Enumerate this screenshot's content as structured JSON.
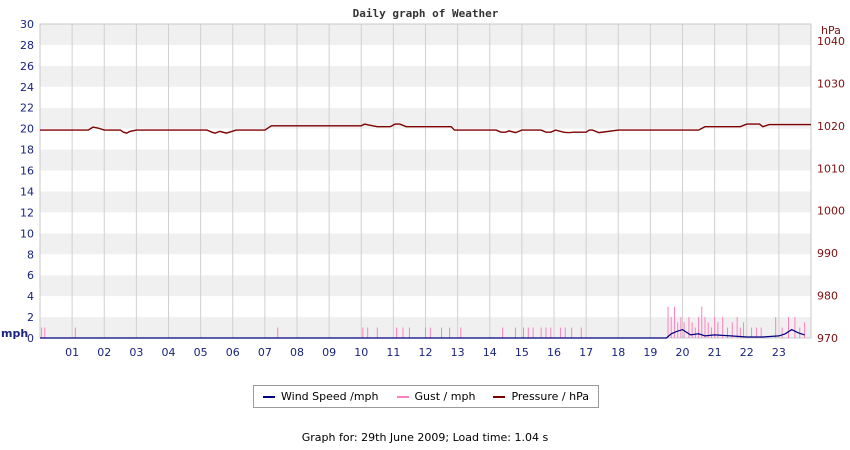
{
  "chart_data": {
    "type": "line",
    "title": "Daily graph of Weather",
    "left_axis": {
      "label": "mph",
      "ylim": [
        0,
        30
      ],
      "ticks": [
        0,
        2,
        4,
        6,
        8,
        10,
        12,
        14,
        16,
        18,
        20,
        22,
        24,
        26,
        28,
        30
      ]
    },
    "right_axis": {
      "label": "hPa",
      "ylim": [
        970,
        1044
      ],
      "ticks": [
        970,
        980,
        990,
        1000,
        1010,
        1020,
        1030,
        1040
      ]
    },
    "x_axis": {
      "xlim": [
        0,
        24
      ],
      "ticks": [
        "01",
        "02",
        "03",
        "04",
        "05",
        "06",
        "07",
        "08",
        "09",
        "10",
        "11",
        "12",
        "13",
        "14",
        "15",
        "16",
        "17",
        "18",
        "19",
        "20",
        "21",
        "22",
        "23"
      ]
    },
    "grid": true,
    "legend_position": "bottom",
    "series": [
      {
        "name": "Wind Speed /mph",
        "axis": "left",
        "color": "#000080",
        "x": [
          0,
          19.5,
          19.65,
          19.8,
          20.0,
          20.1,
          20.25,
          20.5,
          20.7,
          21.0,
          21.5,
          22.0,
          22.5,
          23.0,
          23.2,
          23.4,
          23.6,
          23.8
        ],
        "y": [
          0,
          0,
          0.4,
          0.6,
          0.8,
          0.6,
          0.3,
          0.4,
          0.2,
          0.3,
          0.2,
          0.1,
          0.1,
          0.2,
          0.4,
          0.8,
          0.5,
          0.3
        ]
      },
      {
        "name": "Gust / mph",
        "axis": "left",
        "color": "#ff80c0",
        "style": "spikes",
        "spikes": [
          [
            0.05,
            1
          ],
          [
            0.15,
            1
          ],
          [
            1.1,
            1
          ],
          [
            7.4,
            1
          ],
          [
            10.05,
            1
          ],
          [
            10.2,
            1
          ],
          [
            10.5,
            1
          ],
          [
            11.1,
            1
          ],
          [
            11.3,
            1
          ],
          [
            11.5,
            1
          ],
          [
            12.0,
            1
          ],
          [
            12.15,
            1
          ],
          [
            12.5,
            1
          ],
          [
            12.75,
            1
          ],
          [
            13.1,
            1
          ],
          [
            14.4,
            1
          ],
          [
            14.8,
            1
          ],
          [
            15.05,
            1
          ],
          [
            15.2,
            1
          ],
          [
            15.35,
            1
          ],
          [
            15.6,
            1
          ],
          [
            15.75,
            1
          ],
          [
            15.9,
            1
          ],
          [
            16.2,
            1
          ],
          [
            16.35,
            1
          ],
          [
            16.55,
            1
          ],
          [
            16.85,
            1
          ],
          [
            19.55,
            3
          ],
          [
            19.65,
            2
          ],
          [
            19.75,
            3
          ],
          [
            19.85,
            1.5
          ],
          [
            19.95,
            2
          ],
          [
            20.05,
            1.5
          ],
          [
            20.2,
            2
          ],
          [
            20.3,
            1.5
          ],
          [
            20.4,
            1
          ],
          [
            20.5,
            2
          ],
          [
            20.6,
            3
          ],
          [
            20.7,
            2
          ],
          [
            20.8,
            1.5
          ],
          [
            20.9,
            1
          ],
          [
            21.0,
            2
          ],
          [
            21.1,
            1.5
          ],
          [
            21.25,
            2
          ],
          [
            21.4,
            1
          ],
          [
            21.55,
            1.5
          ],
          [
            21.7,
            2
          ],
          [
            21.8,
            1
          ],
          [
            21.9,
            1.5
          ],
          [
            22.15,
            1
          ],
          [
            22.3,
            1
          ],
          [
            22.45,
            1
          ],
          [
            22.9,
            2
          ],
          [
            23.1,
            1
          ],
          [
            23.3,
            2
          ],
          [
            23.5,
            2
          ],
          [
            23.65,
            1
          ],
          [
            23.8,
            1.5
          ]
        ]
      },
      {
        "name": "Pressure / hPa",
        "axis": "right",
        "color": "#800000",
        "x": [
          0,
          1.5,
          1.65,
          1.8,
          2.0,
          2.5,
          2.6,
          2.7,
          2.8,
          3.0,
          4.0,
          5.2,
          5.35,
          5.45,
          5.6,
          5.8,
          5.9,
          6.1,
          6.3,
          7.0,
          7.2,
          9.0,
          10.0,
          10.1,
          10.3,
          10.5,
          10.9,
          11.05,
          11.2,
          11.4,
          12.8,
          12.9,
          13.0,
          14.2,
          14.35,
          14.5,
          14.6,
          14.8,
          15.0,
          15.6,
          15.75,
          15.9,
          16.05,
          16.3,
          16.4,
          16.5,
          16.6,
          17.0,
          17.1,
          17.2,
          17.4,
          18.0,
          19.5,
          20.5,
          20.7,
          21.0,
          21.8,
          22.0,
          22.2,
          22.4,
          22.5,
          22.7,
          24.0
        ],
        "y": [
          1019,
          1019,
          1019.7,
          1019.5,
          1019,
          1019,
          1018.5,
          1018.3,
          1018.7,
          1019,
          1019,
          1019,
          1018.5,
          1018.3,
          1018.7,
          1018.3,
          1018.5,
          1019,
          1019,
          1019,
          1020,
          1020,
          1020,
          1020.4,
          1020.1,
          1019.8,
          1019.8,
          1020.4,
          1020.4,
          1019.8,
          1019.8,
          1019,
          1019,
          1019,
          1018.5,
          1018.5,
          1018.8,
          1018.4,
          1019,
          1019,
          1018.5,
          1018.5,
          1019,
          1018.5,
          1018.4,
          1018.4,
          1018.5,
          1018.5,
          1019,
          1019,
          1018.4,
          1019,
          1019,
          1019,
          1019.8,
          1019.8,
          1019.8,
          1020.4,
          1020.4,
          1020.4,
          1019.8,
          1020.3,
          1020.3
        ]
      }
    ]
  },
  "footer": {
    "text": "Graph for: 29th June 2009; Load time: 1.04 s"
  }
}
